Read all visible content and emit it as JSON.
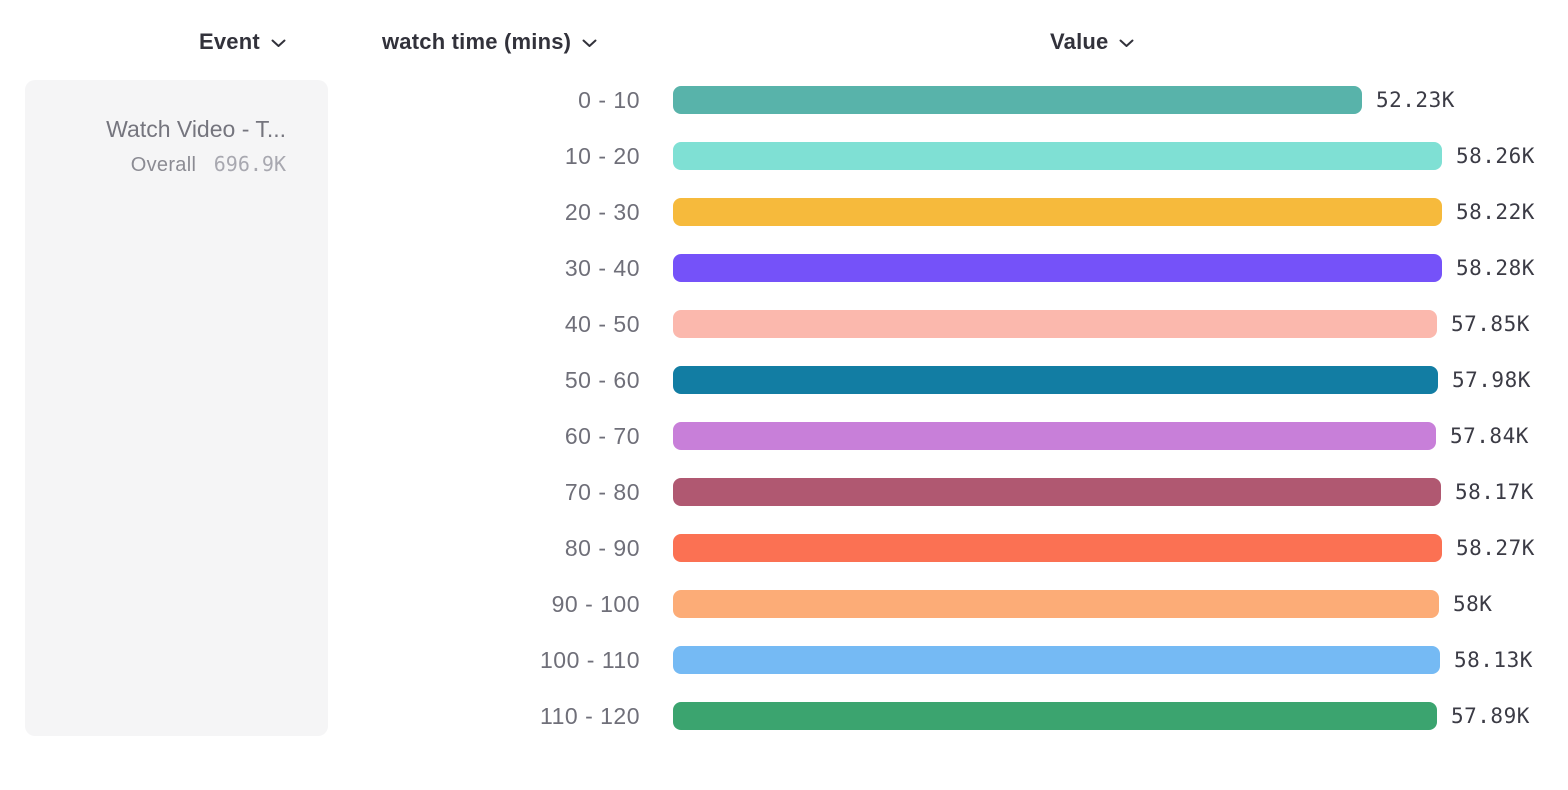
{
  "header": {
    "columns": [
      {
        "label": "Event"
      },
      {
        "label": "watch time (mins)"
      },
      {
        "label": "Value"
      }
    ]
  },
  "event_card": {
    "title": "Watch Video - T...",
    "overall_label": "Overall",
    "overall_value": "696.9K"
  },
  "chart_data": {
    "type": "bar",
    "orientation": "horizontal",
    "title": "",
    "xlabel": "Value",
    "ylabel": "watch time (mins)",
    "grid": false,
    "legend": "none",
    "xlim": [
      0,
      58.28
    ],
    "unit": "K",
    "categories": [
      "0 - 10",
      "10 - 20",
      "20 - 30",
      "30 - 40",
      "40 - 50",
      "50 - 60",
      "60 - 70",
      "70 - 80",
      "80 - 90",
      "90 - 100",
      "100 - 110",
      "110 - 120"
    ],
    "values": [
      52.23,
      58.26,
      58.22,
      58.28,
      57.85,
      57.98,
      57.84,
      58.17,
      58.27,
      58.0,
      58.13,
      57.89
    ],
    "value_labels": [
      "52.23K",
      "58.26K",
      "58.22K",
      "58.28K",
      "57.85K",
      "57.98K",
      "57.84K",
      "58.17K",
      "58.27K",
      "58K",
      "58.13K",
      "57.89K"
    ],
    "colors": [
      "#58b3aa",
      "#7fe0d4",
      "#f6ba3c",
      "#7552f9",
      "#fbb8ad",
      "#127da3",
      "#c87fd9",
      "#b05871",
      "#fb7153",
      "#fcac77",
      "#75baf4",
      "#3ba46f"
    ]
  }
}
